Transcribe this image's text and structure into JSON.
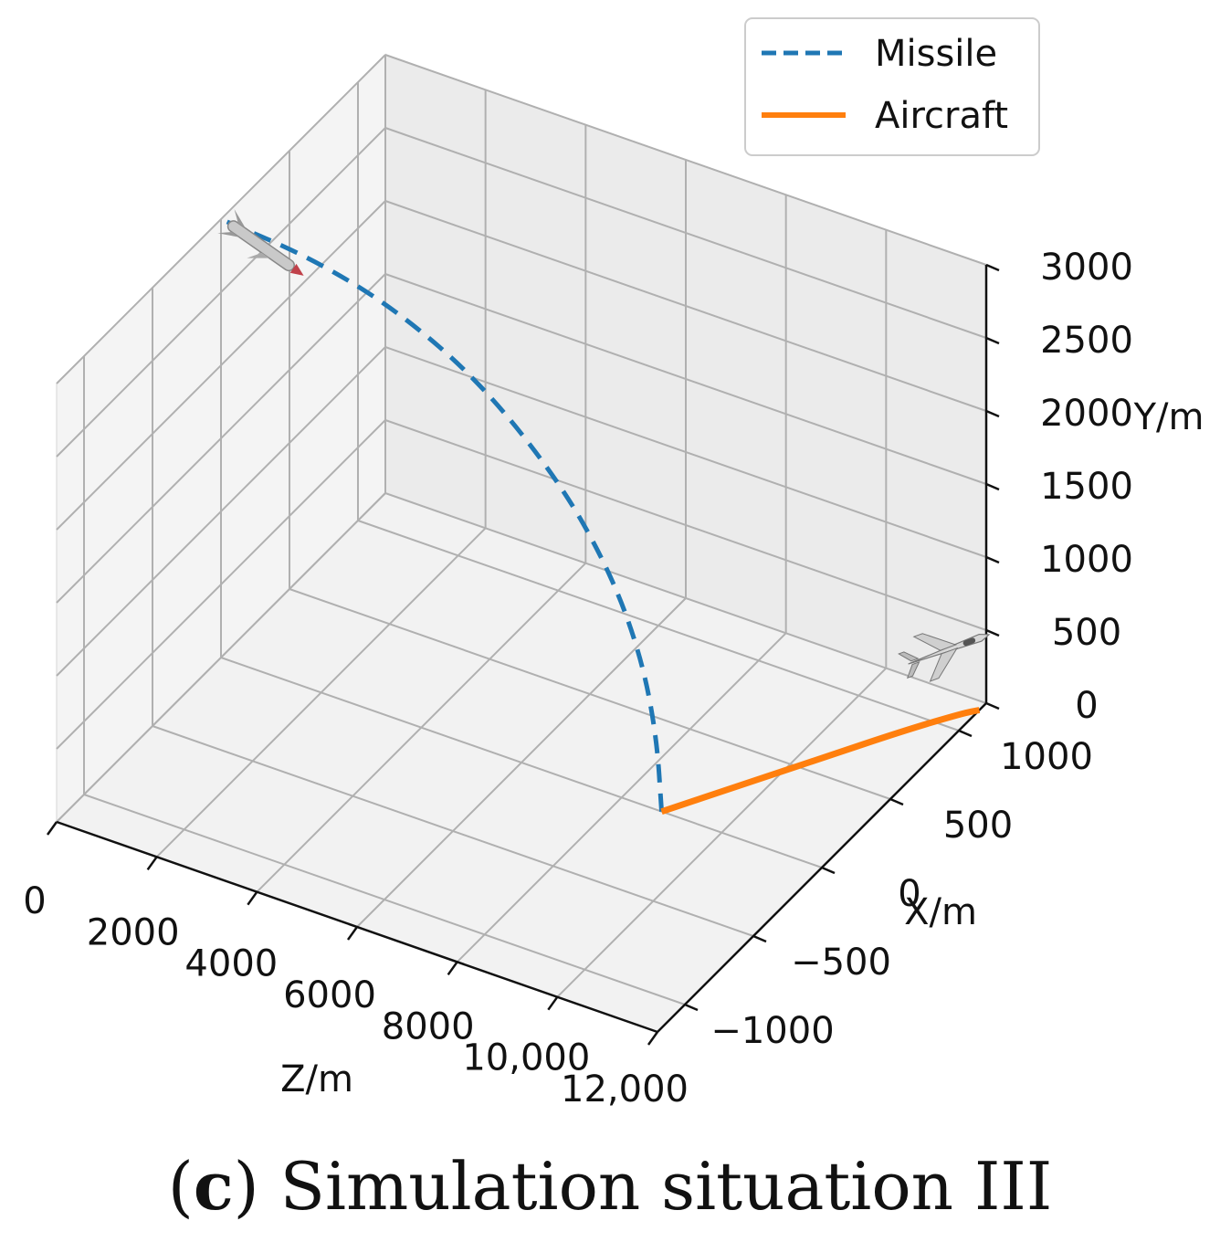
{
  "caption": {
    "open": "(",
    "letter": "c",
    "close": ")",
    "text": " Simulation situation III"
  },
  "chart_data": {
    "type": "line3d",
    "axes": {
      "x": {
        "label": "X/m",
        "ticks": [
          -1000,
          -500,
          0,
          500,
          1000
        ],
        "tick_labels": [
          "−1000",
          "−500",
          "0",
          "500",
          "1000"
        ],
        "range": [
          -1200,
          1200
        ]
      },
      "y": {
        "label": "Y/m",
        "ticks": [
          0,
          500,
          1000,
          1500,
          2000,
          2500,
          3000
        ],
        "tick_labels": [
          "0",
          "500",
          "1000",
          "1500",
          "2000",
          "2500",
          "3000"
        ],
        "range": [
          0,
          3000
        ]
      },
      "z": {
        "label": "Z/m",
        "ticks": [
          0,
          2000,
          4000,
          6000,
          8000,
          10000,
          12000
        ],
        "tick_labels": [
          "0",
          "2000",
          "4000",
          "6000",
          "8000",
          "10,000",
          "12,000"
        ],
        "range": [
          0,
          12000
        ]
      }
    },
    "grid": true,
    "legend": {
      "position": "top-right",
      "entries": [
        "Missile",
        "Aircraft"
      ]
    },
    "series": [
      {
        "name": "Missile",
        "style": "dashed",
        "color": "#1f77b4",
        "points": [
          {
            "x": 0,
            "y": 0,
            "z": 8800
          },
          {
            "x": 0,
            "y": 500,
            "z": 8700
          },
          {
            "x": 0,
            "y": 1000,
            "z": 8400
          },
          {
            "x": 0,
            "y": 1500,
            "z": 7800
          },
          {
            "x": 0,
            "y": 2000,
            "z": 6800
          },
          {
            "x": 0,
            "y": 2500,
            "z": 5200
          },
          {
            "x": 0,
            "y": 2800,
            "z": 3500
          },
          {
            "x": 0,
            "y": 2950,
            "z": 1800
          },
          {
            "x": 0,
            "y": 3000,
            "z": 0
          }
        ]
      },
      {
        "name": "Aircraft",
        "style": "solid",
        "color": "#ff7f0e",
        "points": [
          {
            "x": 0,
            "y": 0,
            "z": 8800
          },
          {
            "x": 300,
            "y": 0,
            "z": 9600
          },
          {
            "x": 600,
            "y": 0,
            "z": 10400
          },
          {
            "x": 900,
            "y": 0,
            "z": 11200
          },
          {
            "x": 1100,
            "y": 0,
            "z": 11800
          },
          {
            "x": 1150,
            "y": 0,
            "z": 12000
          }
        ]
      }
    ]
  },
  "icons": {
    "missile": "missile-icon",
    "aircraft": "fighter-jet-icon"
  }
}
